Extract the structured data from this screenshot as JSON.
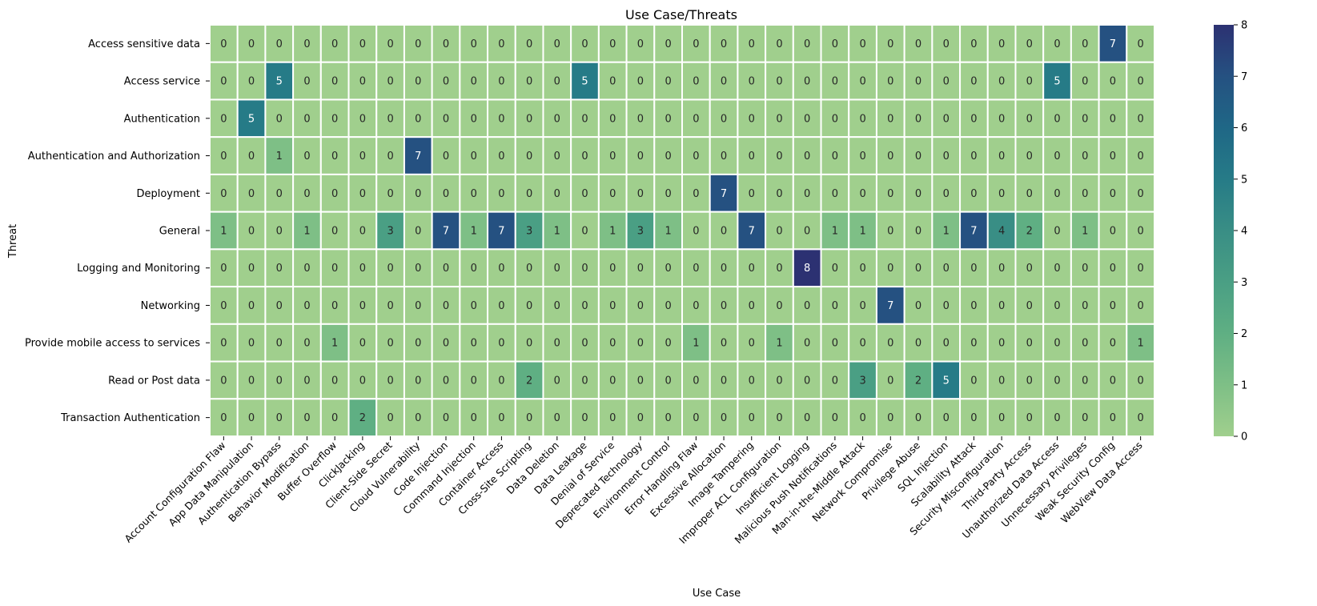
{
  "chart_data": {
    "type": "heatmap",
    "title": "Use Case/Threats",
    "xlabel": "Use Case",
    "ylabel": "Threat",
    "x_categories": [
      "Account Configuration Flaw",
      "App Data Manipulation",
      "Authentication Bypass",
      "Behavior Modification",
      "Buffer Overflow",
      "ClickJacking",
      "Client-Side Secret",
      "Cloud Vulnerability",
      "Code Injection",
      "Command Injection",
      "Container Access",
      "Cross-Site Scripting",
      "Data Deletion",
      "Data Leakage",
      "Denial of Service",
      "Deprecated Technology",
      "Environment Control",
      "Error Handling Flaw",
      "Excessive Allocation",
      "Image Tampering",
      "Improper ACL Configuration",
      "Insufficient Logging",
      "Malicious Push Notifications",
      "Man-in-the-Middle Attack",
      "Network Compromise",
      "Privilege Abuse",
      "SQL Injection",
      "Scalability Attack",
      "Security Misconfiguration",
      "Third-Party Access",
      "Unauthorized Data Access",
      "Unnecessary Privileges",
      "Weak Security Config",
      "WebView Data Access"
    ],
    "y_categories": [
      "Access sensitive data",
      "Access service",
      "Authentication",
      "Authentication and Authorization",
      "Deployment",
      "General",
      "Logging and Monitoring",
      "Networking",
      "Provide mobile access to services",
      "Read or Post data",
      "Transaction Authentication"
    ],
    "values": [
      [
        0,
        0,
        0,
        0,
        0,
        0,
        0,
        0,
        0,
        0,
        0,
        0,
        0,
        0,
        0,
        0,
        0,
        0,
        0,
        0,
        0,
        0,
        0,
        0,
        0,
        0,
        0,
        0,
        0,
        0,
        0,
        0,
        7,
        0
      ],
      [
        0,
        0,
        5,
        0,
        0,
        0,
        0,
        0,
        0,
        0,
        0,
        0,
        0,
        5,
        0,
        0,
        0,
        0,
        0,
        0,
        0,
        0,
        0,
        0,
        0,
        0,
        0,
        0,
        0,
        0,
        5,
        0,
        0,
        0
      ],
      [
        0,
        5,
        0,
        0,
        0,
        0,
        0,
        0,
        0,
        0,
        0,
        0,
        0,
        0,
        0,
        0,
        0,
        0,
        0,
        0,
        0,
        0,
        0,
        0,
        0,
        0,
        0,
        0,
        0,
        0,
        0,
        0,
        0,
        0
      ],
      [
        0,
        0,
        1,
        0,
        0,
        0,
        0,
        7,
        0,
        0,
        0,
        0,
        0,
        0,
        0,
        0,
        0,
        0,
        0,
        0,
        0,
        0,
        0,
        0,
        0,
        0,
        0,
        0,
        0,
        0,
        0,
        0,
        0,
        0
      ],
      [
        0,
        0,
        0,
        0,
        0,
        0,
        0,
        0,
        0,
        0,
        0,
        0,
        0,
        0,
        0,
        0,
        0,
        0,
        7,
        0,
        0,
        0,
        0,
        0,
        0,
        0,
        0,
        0,
        0,
        0,
        0,
        0,
        0,
        0
      ],
      [
        1,
        0,
        0,
        1,
        0,
        0,
        3,
        0,
        7,
        1,
        7,
        3,
        1,
        0,
        1,
        3,
        1,
        0,
        0,
        7,
        0,
        0,
        1,
        1,
        0,
        0,
        1,
        7,
        4,
        2,
        0,
        1,
        0,
        0
      ],
      [
        0,
        0,
        0,
        0,
        0,
        0,
        0,
        0,
        0,
        0,
        0,
        0,
        0,
        0,
        0,
        0,
        0,
        0,
        0,
        0,
        0,
        8,
        0,
        0,
        0,
        0,
        0,
        0,
        0,
        0,
        0,
        0,
        0,
        0
      ],
      [
        0,
        0,
        0,
        0,
        0,
        0,
        0,
        0,
        0,
        0,
        0,
        0,
        0,
        0,
        0,
        0,
        0,
        0,
        0,
        0,
        0,
        0,
        0,
        0,
        7,
        0,
        0,
        0,
        0,
        0,
        0,
        0,
        0,
        0
      ],
      [
        0,
        0,
        0,
        0,
        1,
        0,
        0,
        0,
        0,
        0,
        0,
        0,
        0,
        0,
        0,
        0,
        0,
        1,
        0,
        0,
        1,
        0,
        0,
        0,
        0,
        0,
        0,
        0,
        0,
        0,
        0,
        0,
        0,
        1
      ],
      [
        0,
        0,
        0,
        0,
        0,
        0,
        0,
        0,
        0,
        0,
        0,
        2,
        0,
        0,
        0,
        0,
        0,
        0,
        0,
        0,
        0,
        0,
        0,
        3,
        0,
        2,
        5,
        0,
        0,
        0,
        0,
        0,
        0,
        0
      ],
      [
        0,
        0,
        0,
        0,
        0,
        2,
        0,
        0,
        0,
        0,
        0,
        0,
        0,
        0,
        0,
        0,
        0,
        0,
        0,
        0,
        0,
        0,
        0,
        0,
        0,
        0,
        0,
        0,
        0,
        0,
        0,
        0,
        0,
        0
      ]
    ],
    "vmin": 0,
    "vmax": 8,
    "colorbar_ticks": [
      "0",
      "1",
      "2",
      "3",
      "4",
      "5",
      "6",
      "7",
      "8"
    ],
    "colormap": "crest",
    "colormap_stops": [
      "#a0cf8d",
      "#7ebf86",
      "#5faf83",
      "#4a9f84",
      "#398e85",
      "#267b87",
      "#1f6786",
      "#255181",
      "#2c3172"
    ]
  }
}
